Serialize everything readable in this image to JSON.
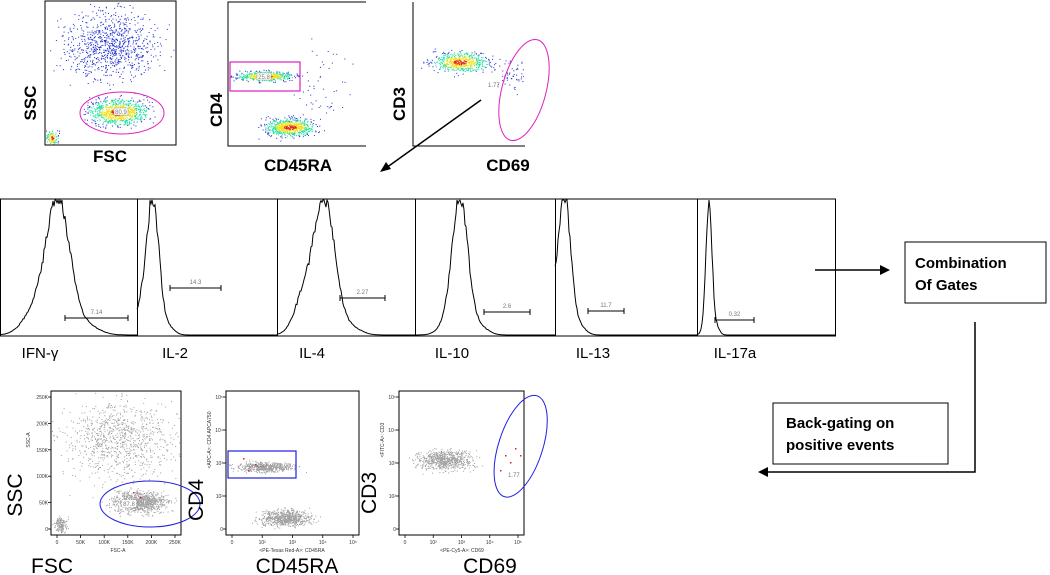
{
  "top_plots": [
    {
      "x_label": "FSC",
      "y_label": "SSC",
      "gate_value": "80.9",
      "gate_color": "#e020c0"
    },
    {
      "x_label": "CD45RA",
      "y_label": "CD4",
      "gate_value": "25.8",
      "gate_color": "#e020c0"
    },
    {
      "x_label": "CD69",
      "y_label": "CD3",
      "gate_value": "1.77",
      "gate_color": "#e020c0"
    }
  ],
  "histograms": [
    {
      "label": "IFN-γ",
      "gate_value": "7.14"
    },
    {
      "label": "IL-2",
      "gate_value": "14.3"
    },
    {
      "label": "IL-4",
      "gate_value": "2.27"
    },
    {
      "label": "IL-10",
      "gate_value": "2.6"
    },
    {
      "label": "IL-13",
      "gate_value": "11.7"
    },
    {
      "label": "IL-17a",
      "gate_value": "0.32"
    }
  ],
  "flow_boxes": {
    "combination": [
      "Combination",
      "Of Gates"
    ],
    "backgating": [
      "Back-gating on",
      "positive events"
    ]
  },
  "bottom_plots": [
    {
      "x_label": "FSC",
      "y_label": "SSC",
      "x_axis_param": "FSC-A",
      "y_axis_param": "SSC-A",
      "gate_value": "87.8",
      "gate_color": "#2020e0",
      "y_ticks": [
        "250K",
        "200K",
        "150K",
        "100K",
        "50K",
        "0"
      ],
      "x_ticks": [
        "0",
        "50K",
        "100K",
        "150K",
        "200K",
        "250K"
      ]
    },
    {
      "x_label": "CD45RA",
      "y_label": "CD4",
      "x_axis_param": "<PE-Texas Red-A>: CD45RA",
      "y_axis_param": "<APC-A>: CD4 APCA750",
      "gate_value": "25.7",
      "gate_color": "#2020e0",
      "y_ticks": [
        "10⁵",
        "10⁴",
        "10³",
        "10²",
        "0"
      ],
      "x_ticks": [
        "0",
        "10²",
        "10³",
        "10⁴",
        "10⁵"
      ]
    },
    {
      "x_label": "CD69",
      "y_label": "CD3",
      "x_axis_param": "<PE-Cy5-A>: CD69",
      "y_axis_param": "<FITC-A>: CD3",
      "gate_value": "1.77",
      "gate_color": "#2020e0",
      "y_ticks": [
        "10⁵",
        "10⁴",
        "10³",
        "10²",
        "0"
      ],
      "x_ticks": [
        "0",
        "10²",
        "10³",
        "10⁴",
        "10⁵"
      ]
    }
  ],
  "colors": {
    "density_low": "#2030d0",
    "density_mid": "#20e0a0",
    "density_high": "#e03010",
    "backgate_gray": "#a0a0a0",
    "positive_events": "#e02020"
  }
}
